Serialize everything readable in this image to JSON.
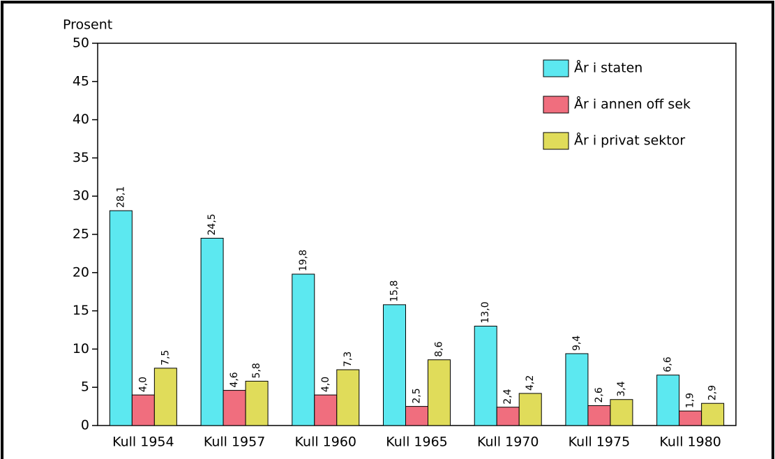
{
  "chart_data": {
    "type": "bar",
    "y_label": "Prosent",
    "categories": [
      "Kull 1954",
      "Kull 1957",
      "Kull 1960",
      "Kull 1965",
      "Kull 1970",
      "Kull 1975",
      "Kull 1980"
    ],
    "series": [
      {
        "name": "År i staten",
        "color": "#5ce8f0",
        "values": [
          28.1,
          24.5,
          19.8,
          15.8,
          13.0,
          9.4,
          6.6
        ],
        "value_labels": [
          "28,1",
          "24,5",
          "19,8",
          "15,8",
          "13,0",
          "9,4",
          "6,6"
        ]
      },
      {
        "name": "År i annen off sek",
        "color": "#f06e7e",
        "values": [
          4.0,
          4.6,
          4.0,
          2.5,
          2.4,
          2.6,
          1.9
        ],
        "value_labels": [
          "4,0",
          "4,6",
          "4,0",
          "2,5",
          "2,4",
          "2,6",
          "1,9"
        ]
      },
      {
        "name": "År i privat sektor",
        "color": "#e0dc5a",
        "values": [
          7.5,
          5.8,
          7.3,
          8.6,
          4.2,
          3.4,
          2.9
        ],
        "value_labels": [
          "7,5",
          "5,8",
          "7,3",
          "8,6",
          "4,2",
          "3,4",
          "2,9"
        ]
      }
    ],
    "ylim": [
      0,
      50
    ],
    "yticks": [
      0,
      5,
      10,
      15,
      20,
      25,
      30,
      35,
      40,
      45,
      50
    ],
    "legend": "top-right"
  }
}
